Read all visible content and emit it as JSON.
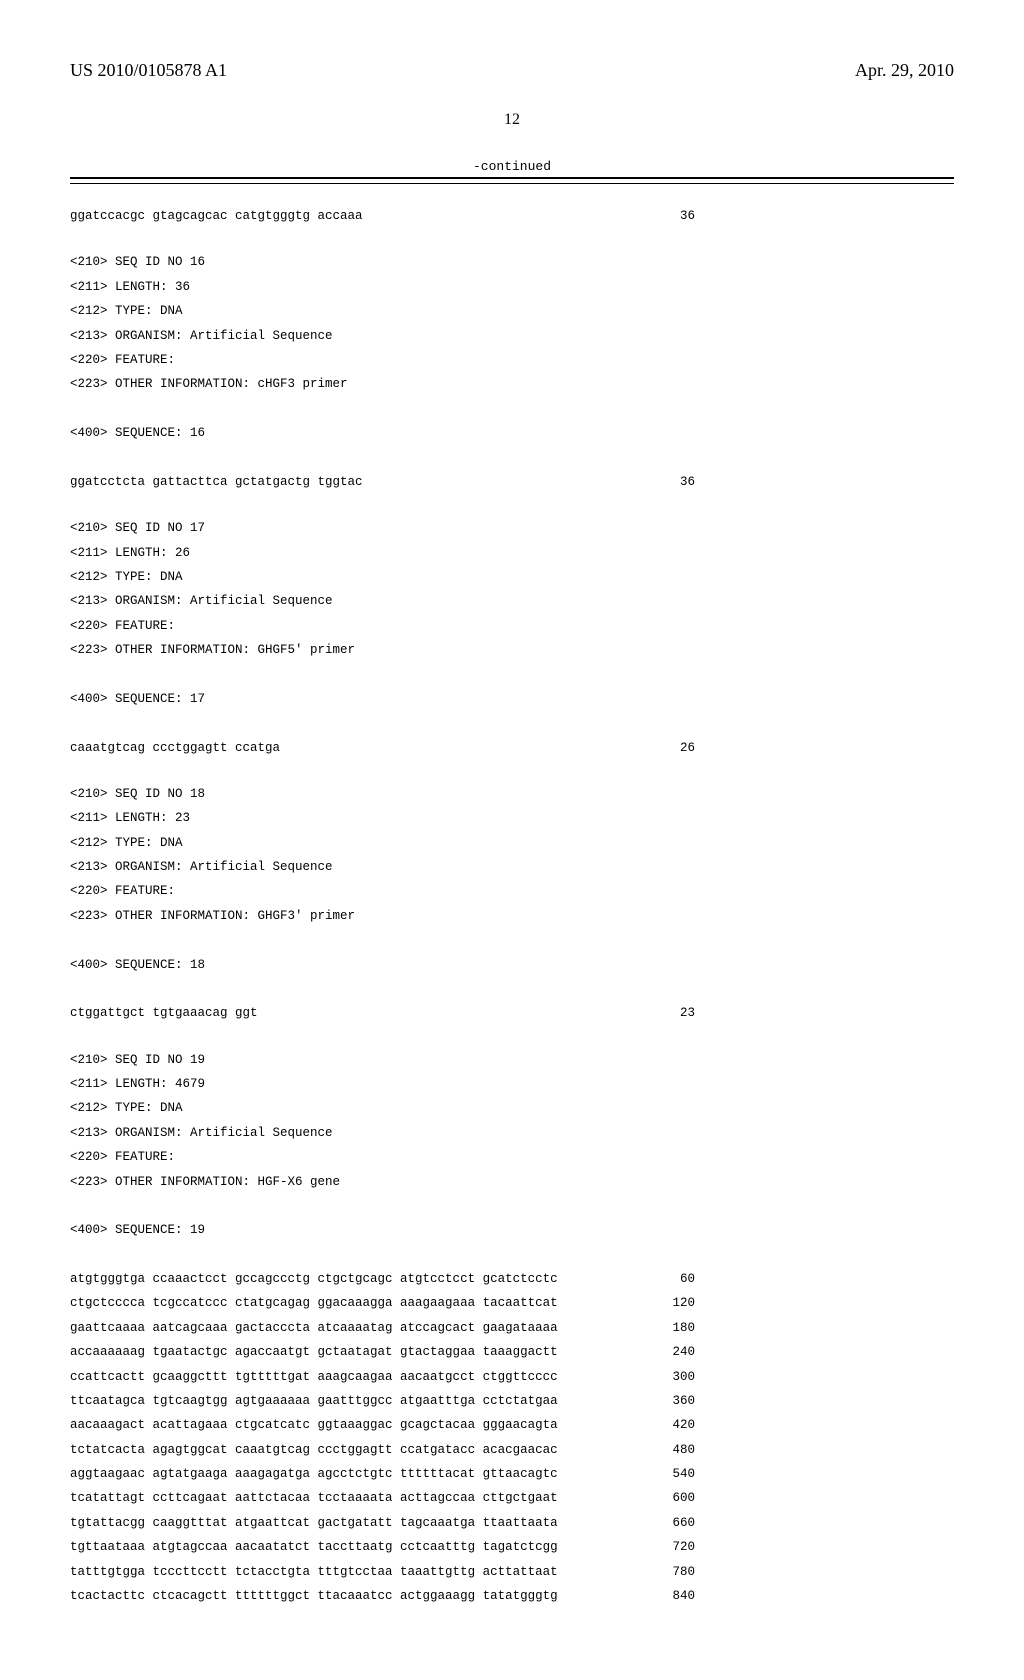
{
  "header": {
    "pub_number": "US 2010/0105878 A1",
    "pub_date": "Apr. 29, 2010",
    "page_number": "12"
  },
  "continued_label": "-continued",
  "blocks": [
    {
      "lines": [],
      "seq_rows": [
        {
          "text": "ggatccacgc gtagcagcac catgtgggtg accaaa",
          "num": "36"
        }
      ]
    },
    {
      "lines": [
        "<210> SEQ ID NO 16",
        "<211> LENGTH: 36",
        "<212> TYPE: DNA",
        "<213> ORGANISM: Artificial Sequence",
        "<220> FEATURE:",
        "<223> OTHER INFORMATION: cHGF3 primer",
        "",
        "<400> SEQUENCE: 16"
      ],
      "seq_rows": [
        {
          "text": "ggatcctcta gattacttca gctatgactg tggtac",
          "num": "36"
        }
      ]
    },
    {
      "lines": [
        "<210> SEQ ID NO 17",
        "<211> LENGTH: 26",
        "<212> TYPE: DNA",
        "<213> ORGANISM: Artificial Sequence",
        "<220> FEATURE:",
        "<223> OTHER INFORMATION: GHGF5' primer",
        "",
        "<400> SEQUENCE: 17"
      ],
      "seq_rows": [
        {
          "text": "caaatgtcag ccctggagtt ccatga",
          "num": "26"
        }
      ]
    },
    {
      "lines": [
        "<210> SEQ ID NO 18",
        "<211> LENGTH: 23",
        "<212> TYPE: DNA",
        "<213> ORGANISM: Artificial Sequence",
        "<220> FEATURE:",
        "<223> OTHER INFORMATION: GHGF3' primer",
        "",
        "<400> SEQUENCE: 18"
      ],
      "seq_rows": [
        {
          "text": "ctggattgct tgtgaaacag ggt",
          "num": "23"
        }
      ]
    },
    {
      "lines": [
        "<210> SEQ ID NO 19",
        "<211> LENGTH: 4679",
        "<212> TYPE: DNA",
        "<213> ORGANISM: Artificial Sequence",
        "<220> FEATURE:",
        "<223> OTHER INFORMATION: HGF-X6 gene",
        "",
        "<400> SEQUENCE: 19"
      ],
      "seq_rows": [
        {
          "text": "atgtgggtga ccaaactcct gccagccctg ctgctgcagc atgtcctcct gcatctcctc",
          "num": "60"
        },
        {
          "text": "ctgctcccca tcgccatccc ctatgcagag ggacaaagga aaagaagaaa tacaattcat",
          "num": "120"
        },
        {
          "text": "gaattcaaaa aatcagcaaa gactacccta atcaaaatag atccagcact gaagataaaa",
          "num": "180"
        },
        {
          "text": "accaaaaaag tgaatactgc agaccaatgt gctaatagat gtactaggaa taaaggactt",
          "num": "240"
        },
        {
          "text": "ccattcactt gcaaggcttt tgtttttgat aaagcaagaa aacaatgcct ctggttcccc",
          "num": "300"
        },
        {
          "text": "ttcaatagca tgtcaagtgg agtgaaaaaa gaatttggcc atgaatttga cctctatgaa",
          "num": "360"
        },
        {
          "text": "aacaaagact acattagaaa ctgcatcatc ggtaaaggac gcagctacaa gggaacagta",
          "num": "420"
        },
        {
          "text": "tctatcacta agagtggcat caaatgtcag ccctggagtt ccatgatacc acacgaacac",
          "num": "480"
        },
        {
          "text": "aggtaagaac agtatgaaga aaagagatga agcctctgtc ttttttacat gttaacagtc",
          "num": "540"
        },
        {
          "text": "tcatattagt ccttcagaat aattctacaa tcctaaaata acttagccaa cttgctgaat",
          "num": "600"
        },
        {
          "text": "tgtattacgg caaggtttat atgaattcat gactgatatt tagcaaatga ttaattaata",
          "num": "660"
        },
        {
          "text": "tgttaataaa atgtagccaa aacaatatct taccttaatg cctcaatttg tagatctcgg",
          "num": "720"
        },
        {
          "text": "tatttgtgga tcccttcctt tctacctgta tttgtcctaa taaattgttg acttattaat",
          "num": "780"
        },
        {
          "text": "tcactacttc ctcacagctt ttttttggct ttacaaatcc actggaaagg tatatgggtg",
          "num": "840"
        }
      ]
    }
  ]
}
